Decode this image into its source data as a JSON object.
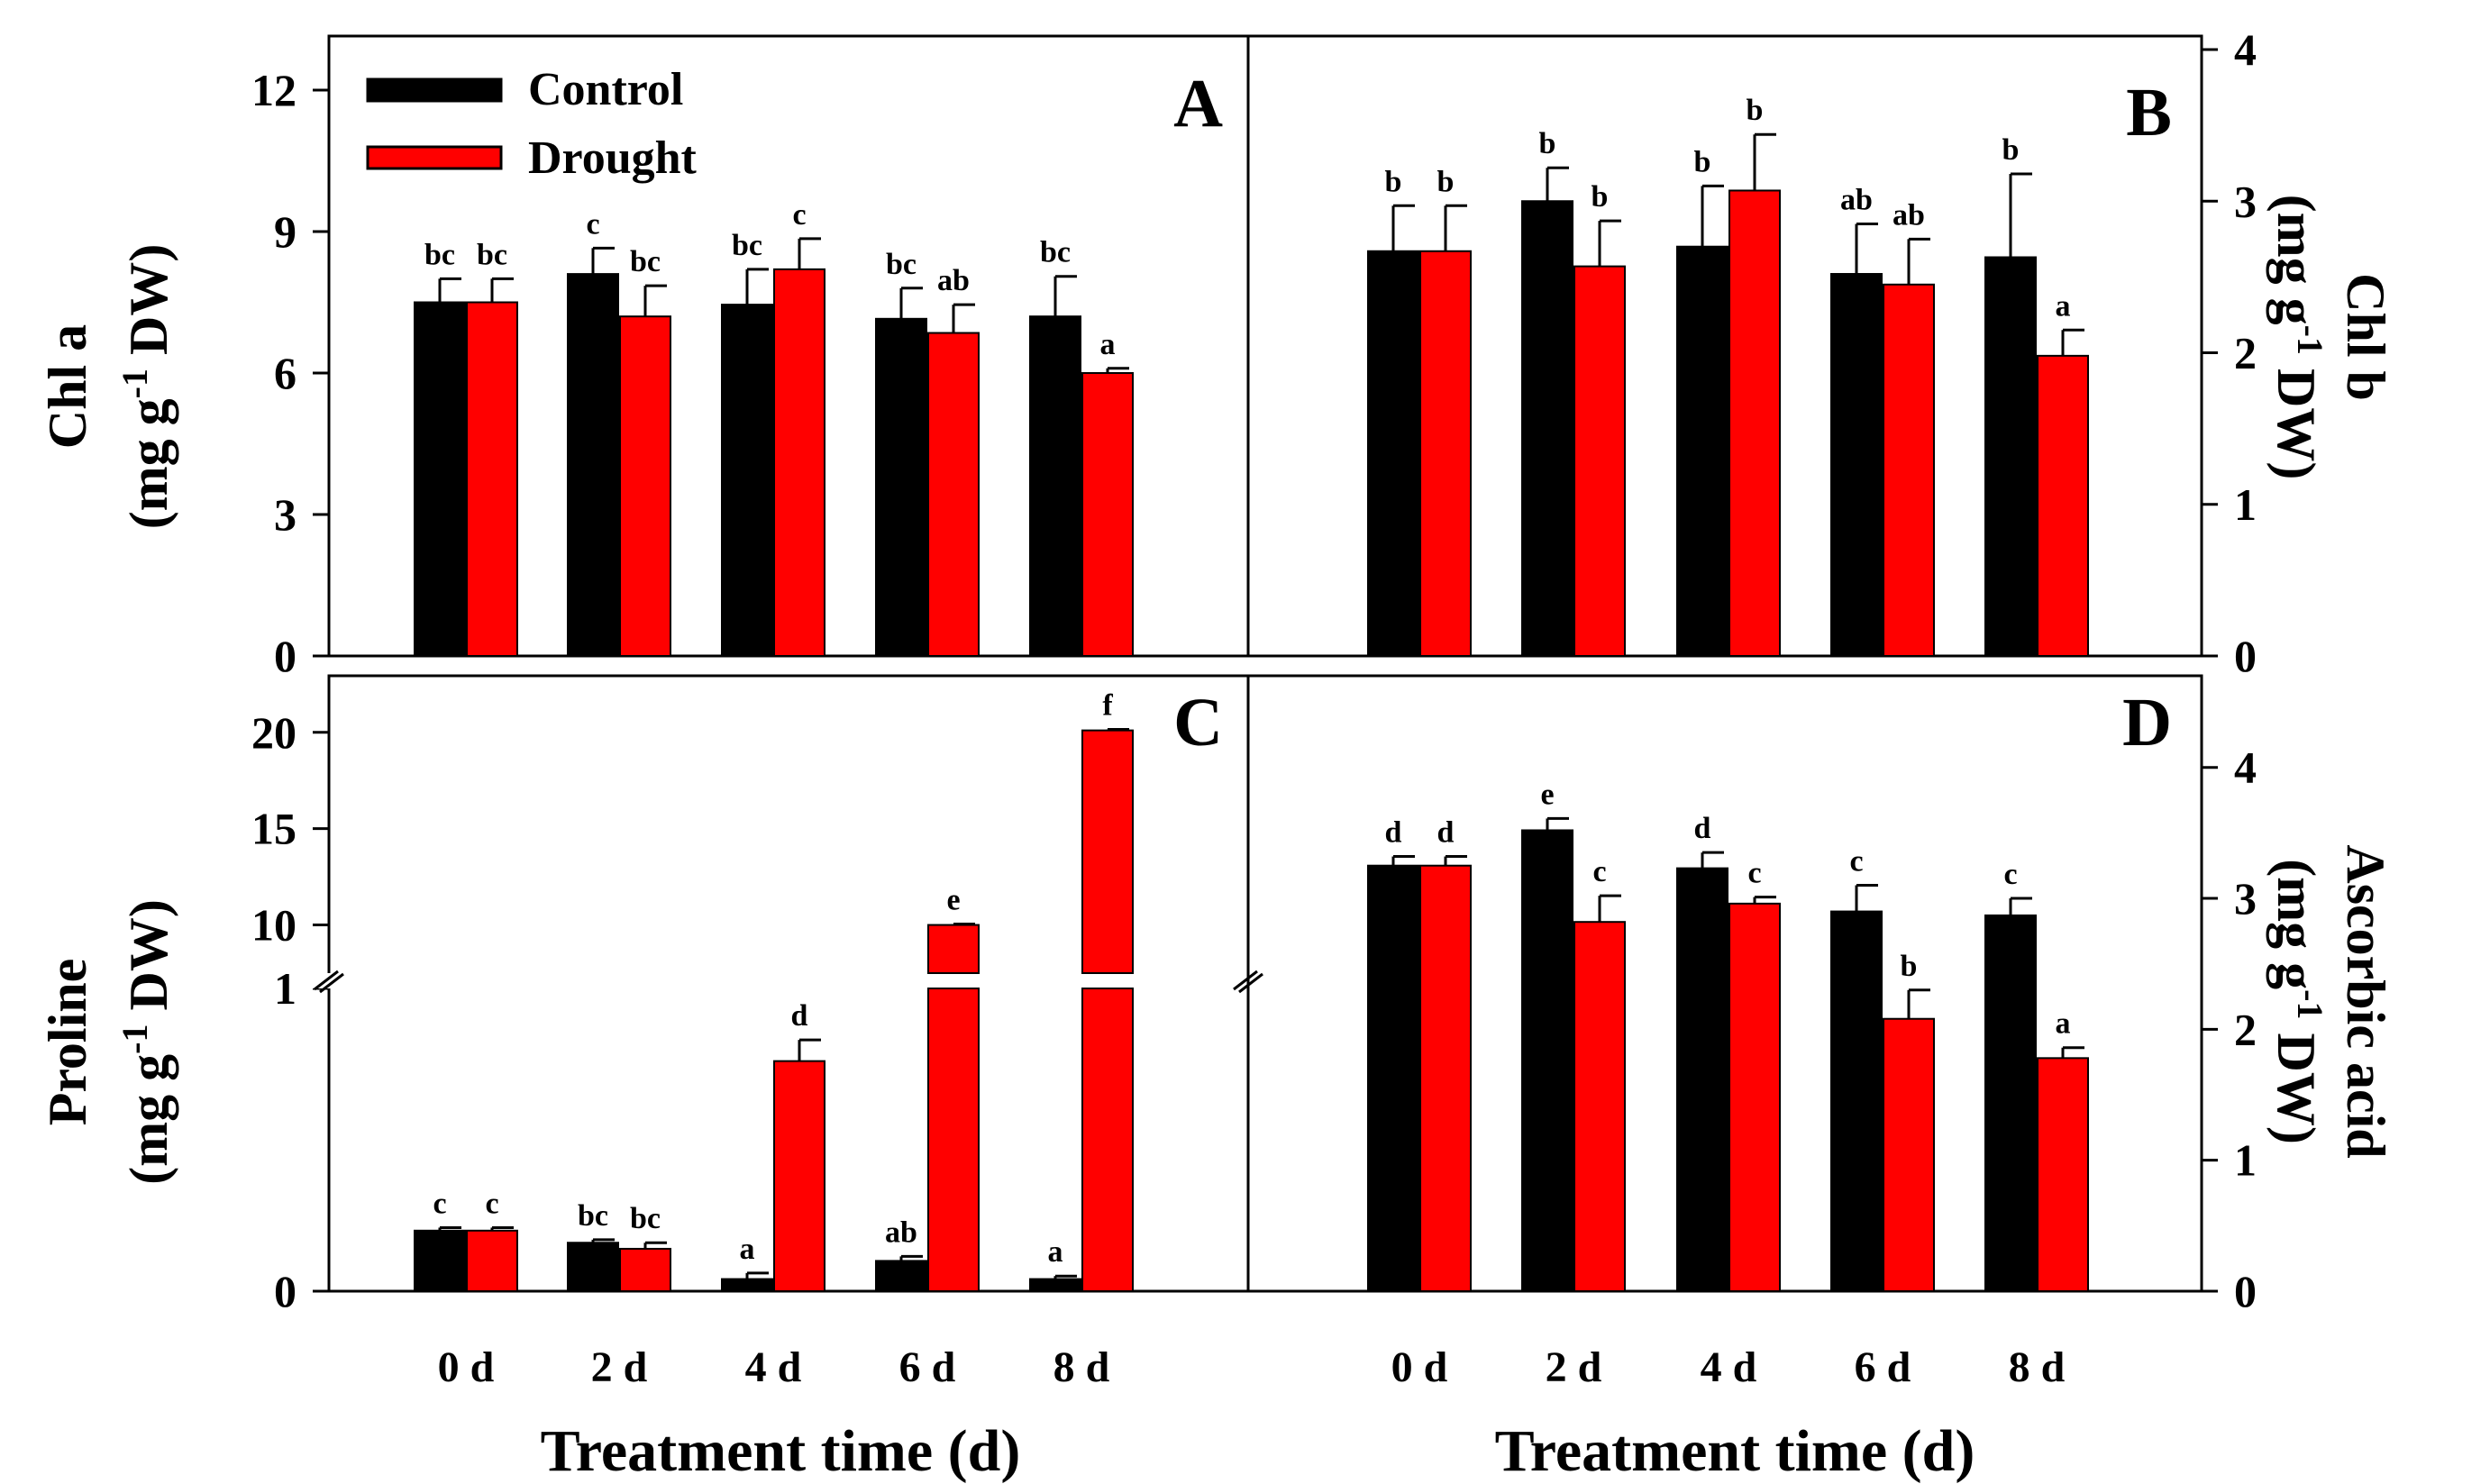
{
  "legend": {
    "items": [
      {
        "label": "Control",
        "color": "#000000"
      },
      {
        "label": "Drought",
        "color": "#ff0000"
      }
    ]
  },
  "categories": [
    "0 d",
    "2 d",
    "4 d",
    "6 d",
    "8 d"
  ],
  "xlabel": "Treatment time (d)",
  "chart_data": [
    {
      "type": "bar",
      "panel": "A",
      "ylabel": [
        "Chl a",
        "(mg g",
        "-1",
        " DW)"
      ],
      "ylim": [
        0,
        12
      ],
      "yticks": [
        0,
        3,
        6,
        9,
        12
      ],
      "yaxis": "left",
      "categories": [
        "0 d",
        "2 d",
        "4 d",
        "6 d",
        "8 d"
      ],
      "series": [
        {
          "name": "Control",
          "color": "#000000",
          "values": [
            7.5,
            8.1,
            7.45,
            7.15,
            7.2
          ],
          "errors": [
            0.5,
            0.55,
            0.75,
            0.65,
            0.85
          ],
          "labels": [
            "bc",
            "c",
            "bc",
            "bc",
            "bc"
          ]
        },
        {
          "name": "Drought",
          "color": "#ff0000",
          "values": [
            7.5,
            7.2,
            8.2,
            6.85,
            6.0
          ],
          "errors": [
            0.5,
            0.65,
            0.65,
            0.6,
            0.1
          ],
          "labels": [
            "bc",
            "bc",
            "c",
            "ab",
            "a"
          ]
        }
      ]
    },
    {
      "type": "bar",
      "panel": "B",
      "ylabel": [
        "Chl b",
        "(mg g",
        "-1",
        " DW)"
      ],
      "ylim": [
        0,
        4
      ],
      "yticks": [
        0,
        1,
        2,
        3,
        4
      ],
      "yaxis": "right",
      "categories": [
        "0 d",
        "2 d",
        "4 d",
        "6 d",
        "8 d"
      ],
      "series": [
        {
          "name": "Control",
          "color": "#000000",
          "values": [
            2.67,
            3.0,
            2.7,
            2.52,
            2.63
          ],
          "errors": [
            0.3,
            0.22,
            0.4,
            0.33,
            0.55
          ],
          "labels": [
            "b",
            "b",
            "b",
            "ab",
            "b"
          ]
        },
        {
          "name": "Drought",
          "color": "#ff0000",
          "values": [
            2.67,
            2.57,
            3.07,
            2.45,
            1.98
          ],
          "errors": [
            0.3,
            0.3,
            0.37,
            0.3,
            0.17
          ],
          "labels": [
            "b",
            "b",
            "b",
            "ab",
            "a"
          ]
        }
      ]
    },
    {
      "type": "bar",
      "panel": "C",
      "ylabel": [
        "Proline",
        "(mg g",
        "-1",
        " DW)"
      ],
      "yaxis": "left",
      "broken_axis": true,
      "ylim_lower": [
        0,
        1
      ],
      "yticks_lower": [
        0,
        1
      ],
      "ylim_upper": [
        7.5,
        22
      ],
      "yticks_upper": [
        10,
        15,
        20
      ],
      "categories": [
        "0 d",
        "2 d",
        "4 d",
        "6 d",
        "8 d"
      ],
      "series": [
        {
          "name": "Control",
          "color": "#000000",
          "values": [
            0.2,
            0.16,
            0.04,
            0.1,
            0.04
          ],
          "errors": [
            0.01,
            0.01,
            0.02,
            0.015,
            0.01
          ],
          "labels": [
            "c",
            "bc",
            "a",
            "ab",
            "a"
          ]
        },
        {
          "name": "Drought",
          "color": "#ff0000",
          "values": [
            0.2,
            0.14,
            0.76,
            10.0,
            20.1
          ],
          "errors": [
            0.01,
            0.02,
            0.07,
            0.05,
            0.05
          ],
          "labels": [
            "c",
            "bc",
            "d",
            "e",
            "f"
          ]
        }
      ]
    },
    {
      "type": "bar",
      "panel": "D",
      "ylabel": [
        "Ascorbic acid",
        "(mg g",
        "-1",
        " DW)"
      ],
      "ylim": [
        0,
        4.7
      ],
      "yticks": [
        0,
        1,
        2,
        3,
        4
      ],
      "yaxis": "right",
      "categories": [
        "0 d",
        "2 d",
        "4 d",
        "6 d",
        "8 d"
      ],
      "series": [
        {
          "name": "Control",
          "color": "#000000",
          "values": [
            3.25,
            3.52,
            3.23,
            2.9,
            2.87
          ],
          "errors": [
            0.07,
            0.09,
            0.12,
            0.2,
            0.13
          ],
          "labels": [
            "d",
            "e",
            "d",
            "c",
            "c"
          ]
        },
        {
          "name": "Drought",
          "color": "#ff0000",
          "values": [
            3.25,
            2.82,
            2.96,
            2.08,
            1.78
          ],
          "errors": [
            0.07,
            0.2,
            0.05,
            0.22,
            0.08
          ],
          "labels": [
            "d",
            "c",
            "c",
            "b",
            "a"
          ]
        }
      ]
    }
  ]
}
